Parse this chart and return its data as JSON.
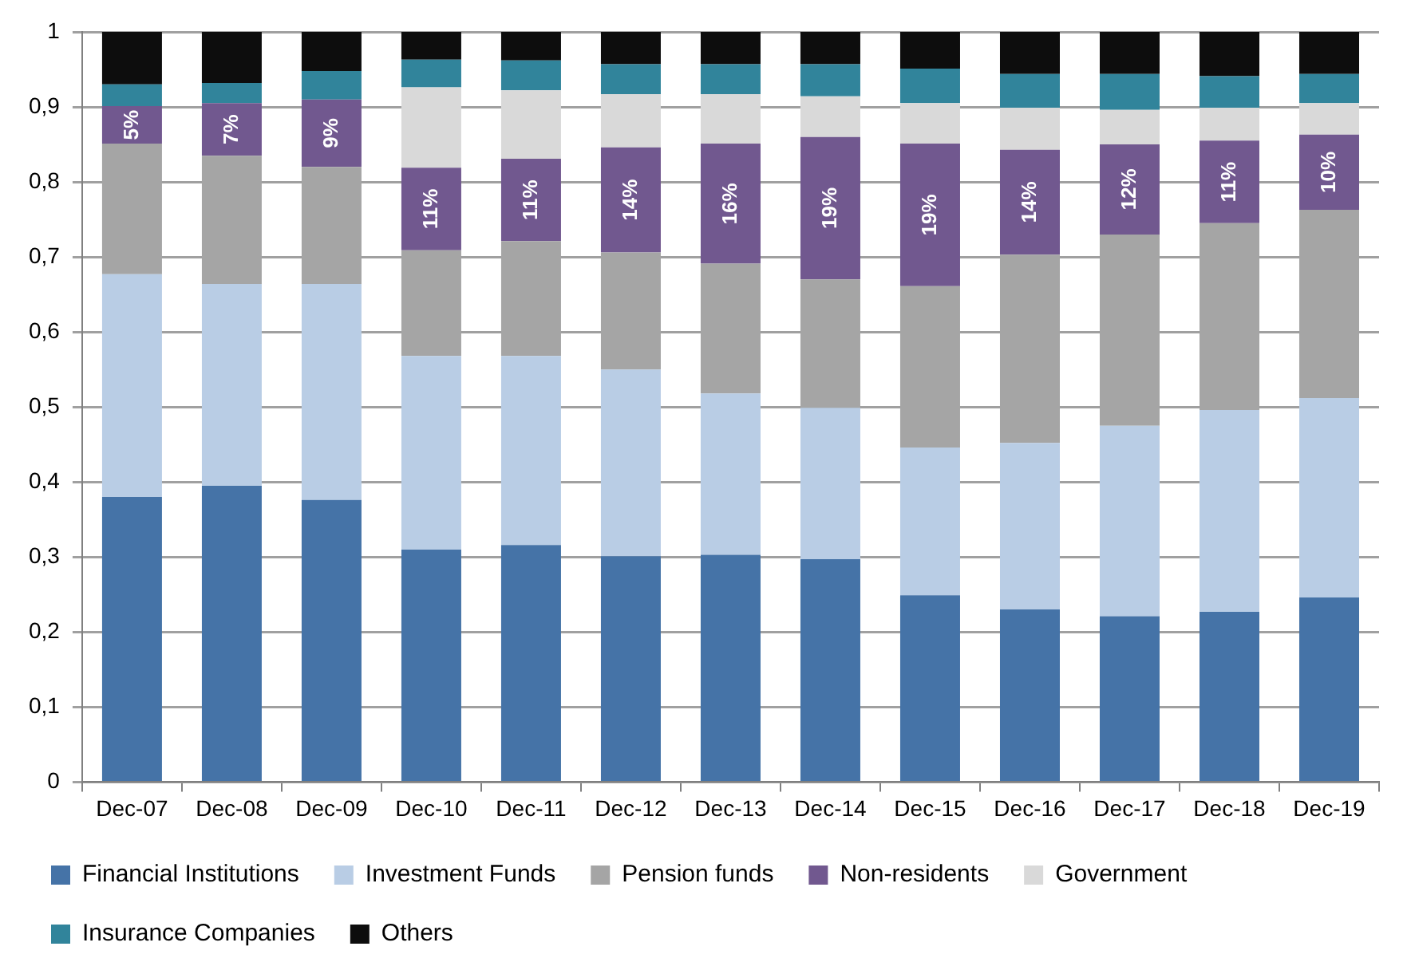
{
  "chart_data": {
    "type": "bar",
    "stacked": true,
    "grid": "y",
    "legend": "bottom",
    "categories": [
      "Dec-07",
      "Dec-08",
      "Dec-09",
      "Dec-10",
      "Dec-11",
      "Dec-12",
      "Dec-13",
      "Dec-14",
      "Dec-15",
      "Dec-16",
      "Dec-17",
      "Dec-18",
      "Dec-19"
    ],
    "ylim": [
      0,
      1
    ],
    "yticks": [
      0,
      {
        "value": 0.1,
        "label": "0,1"
      },
      {
        "value": 0.2,
        "label": "0,2"
      },
      {
        "value": 0.3,
        "label": "0,3"
      },
      {
        "value": 0.4,
        "label": "0,4"
      },
      {
        "value": 0.5,
        "label": "0,5"
      },
      {
        "value": 0.6,
        "label": "0,6"
      },
      {
        "value": 0.7,
        "label": "0,7"
      },
      {
        "value": 0.8,
        "label": "0,8"
      },
      {
        "value": 0.9,
        "label": "0,9"
      },
      1
    ],
    "series": [
      {
        "name": "Financial Institutions",
        "color": "#4573a7",
        "values": [
          0.38,
          0.395,
          0.376,
          0.31,
          0.316,
          0.301,
          0.303,
          0.297,
          0.249,
          0.23,
          0.221,
          0.227,
          0.246
        ]
      },
      {
        "name": "Investment Funds",
        "color": "#b9cde5",
        "values": [
          0.297,
          0.269,
          0.288,
          0.258,
          0.252,
          0.249,
          0.215,
          0.202,
          0.197,
          0.222,
          0.254,
          0.269,
          0.266
        ]
      },
      {
        "name": "Pension funds",
        "color": "#a5a5a5",
        "values": [
          0.174,
          0.171,
          0.156,
          0.141,
          0.153,
          0.156,
          0.173,
          0.171,
          0.215,
          0.251,
          0.255,
          0.249,
          0.251
        ]
      },
      {
        "name": "Non-residents",
        "color": "#71588f",
        "values": [
          0.05,
          0.07,
          0.09,
          0.11,
          0.11,
          0.14,
          0.16,
          0.19,
          0.19,
          0.14,
          0.12,
          0.11,
          0.1
        ],
        "value_labels": [
          "5%",
          "7%",
          "9%",
          "11%",
          "11%",
          "14%",
          "16%",
          "19%",
          "19%",
          "14%",
          "12%",
          "11%",
          "10%"
        ]
      },
      {
        "name": "Government",
        "color": "#d9d9d9",
        "values": [
          0,
          0,
          0,
          0.107,
          0.091,
          0.071,
          0.066,
          0.054,
          0.054,
          0.056,
          0.046,
          0.044,
          0.042
        ]
      },
      {
        "name": "Insurance Companies",
        "color": "#31849b",
        "values": [
          0.029,
          0.027,
          0.038,
          0.037,
          0.04,
          0.04,
          0.04,
          0.043,
          0.046,
          0.045,
          0.048,
          0.042,
          0.039
        ]
      },
      {
        "name": "Others",
        "color": "#0d0d0d",
        "values": [
          0.07,
          0.068,
          0.052,
          0.037,
          0.038,
          0.043,
          0.043,
          0.043,
          0.049,
          0.056,
          0.056,
          0.059,
          0.056
        ]
      }
    ]
  }
}
